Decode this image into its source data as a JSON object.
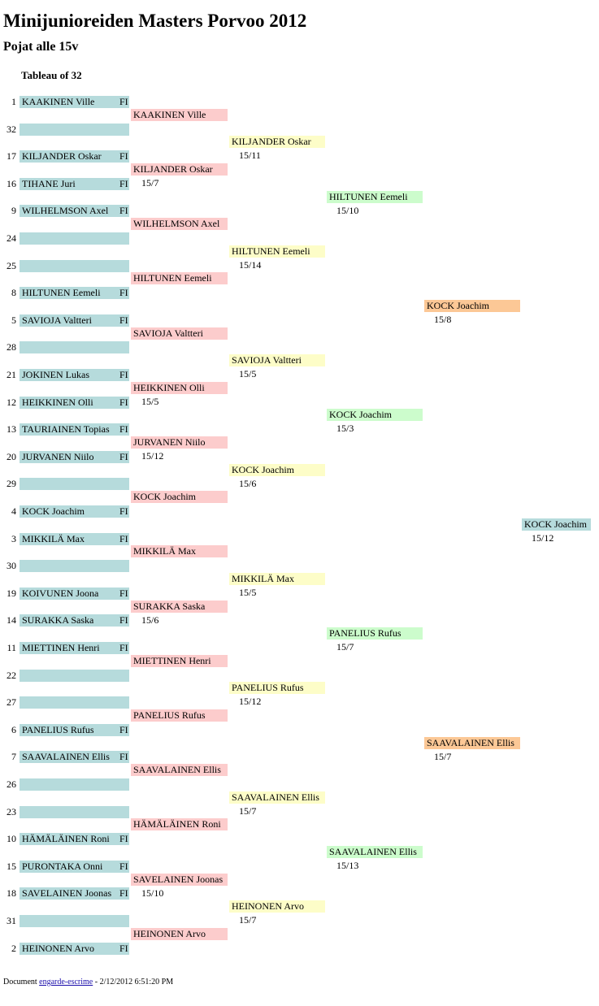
{
  "title": "Minijunioreiden Masters Porvoo 2012",
  "subtitle": "Pojat alle 15v",
  "tableau_label": "Tableau of 32",
  "colors": {
    "entry_bg": "#b6dbdc",
    "round32_bg": "#fccccc",
    "round16_bg": "#fdfdc8",
    "round8_bg": "#ccfccc",
    "round4_bg": "#fcc896",
    "final_bg": "#b6dbdc"
  },
  "entries": [
    {
      "seed": "1",
      "name": "KAAKINEN Ville",
      "nat": "FI"
    },
    {
      "seed": "32",
      "name": "",
      "nat": ""
    },
    {
      "seed": "17",
      "name": "KILJANDER Oskar",
      "nat": "FI"
    },
    {
      "seed": "16",
      "name": "TIHANE Juri",
      "nat": "FI"
    },
    {
      "seed": "9",
      "name": "WILHELMSON Axel",
      "nat": "FI"
    },
    {
      "seed": "24",
      "name": "",
      "nat": ""
    },
    {
      "seed": "25",
      "name": "",
      "nat": ""
    },
    {
      "seed": "8",
      "name": "HILTUNEN Eemeli",
      "nat": "FI"
    },
    {
      "seed": "5",
      "name": "SAVIOJA Valtteri",
      "nat": "FI"
    },
    {
      "seed": "28",
      "name": "",
      "nat": ""
    },
    {
      "seed": "21",
      "name": "JOKINEN Lukas",
      "nat": "FI"
    },
    {
      "seed": "12",
      "name": "HEIKKINEN Olli",
      "nat": "FI"
    },
    {
      "seed": "13",
      "name": "TAURIAINEN Topias",
      "nat": "FI"
    },
    {
      "seed": "20",
      "name": "JURVANEN Niilo",
      "nat": "FI"
    },
    {
      "seed": "29",
      "name": "",
      "nat": ""
    },
    {
      "seed": "4",
      "name": "KOCK Joachim",
      "nat": "FI"
    },
    {
      "seed": "3",
      "name": "MIKKILÄ Max",
      "nat": "FI"
    },
    {
      "seed": "30",
      "name": "",
      "nat": ""
    },
    {
      "seed": "19",
      "name": "KOIVUNEN Joona",
      "nat": "FI"
    },
    {
      "seed": "14",
      "name": "SURAKKA Saska",
      "nat": "FI"
    },
    {
      "seed": "11",
      "name": "MIETTINEN Henri",
      "nat": "FI"
    },
    {
      "seed": "22",
      "name": "",
      "nat": ""
    },
    {
      "seed": "27",
      "name": "",
      "nat": ""
    },
    {
      "seed": "6",
      "name": "PANELIUS Rufus",
      "nat": "FI"
    },
    {
      "seed": "7",
      "name": "SAAVALAINEN Ellis",
      "nat": "FI"
    },
    {
      "seed": "26",
      "name": "",
      "nat": ""
    },
    {
      "seed": "23",
      "name": "",
      "nat": ""
    },
    {
      "seed": "10",
      "name": "HÄMÄLÄINEN Roni",
      "nat": "FI"
    },
    {
      "seed": "15",
      "name": "PURONTAKA Onni",
      "nat": "FI"
    },
    {
      "seed": "18",
      "name": "SAVELAINEN Joonas",
      "nat": "FI"
    },
    {
      "seed": "31",
      "name": "",
      "nat": ""
    },
    {
      "seed": "2",
      "name": "HEINONEN Arvo",
      "nat": "FI"
    }
  ],
  "round1": [
    {
      "name": "KAAKINEN Ville",
      "score": ""
    },
    {
      "name": "KILJANDER Oskar",
      "score": "15/7"
    },
    {
      "name": "WILHELMSON Axel",
      "score": ""
    },
    {
      "name": "HILTUNEN Eemeli",
      "score": ""
    },
    {
      "name": "SAVIOJA Valtteri",
      "score": ""
    },
    {
      "name": "HEIKKINEN Olli",
      "score": "15/5"
    },
    {
      "name": "JURVANEN Niilo",
      "score": "15/12"
    },
    {
      "name": "KOCK Joachim",
      "score": ""
    },
    {
      "name": "MIKKILÄ Max",
      "score": ""
    },
    {
      "name": "SURAKKA Saska",
      "score": "15/6"
    },
    {
      "name": "MIETTINEN Henri",
      "score": ""
    },
    {
      "name": "PANELIUS Rufus",
      "score": ""
    },
    {
      "name": "SAAVALAINEN Ellis",
      "score": ""
    },
    {
      "name": "HÄMÄLÄINEN Roni",
      "score": ""
    },
    {
      "name": "SAVELAINEN Joonas",
      "score": "15/10"
    },
    {
      "name": "HEINONEN Arvo",
      "score": ""
    }
  ],
  "round2": [
    {
      "name": "KILJANDER Oskar",
      "score": "15/11"
    },
    {
      "name": "HILTUNEN Eemeli",
      "score": "15/14"
    },
    {
      "name": "SAVIOJA Valtteri",
      "score": "15/5"
    },
    {
      "name": "KOCK Joachim",
      "score": "15/6"
    },
    {
      "name": "MIKKILÄ Max",
      "score": "15/5"
    },
    {
      "name": "PANELIUS Rufus",
      "score": "15/12"
    },
    {
      "name": "SAAVALAINEN Ellis",
      "score": "15/7"
    },
    {
      "name": "HEINONEN Arvo",
      "score": "15/7"
    }
  ],
  "round3": [
    {
      "name": "HILTUNEN Eemeli",
      "score": "15/10"
    },
    {
      "name": "KOCK Joachim",
      "score": "15/3"
    },
    {
      "name": "PANELIUS Rufus",
      "score": "15/7"
    },
    {
      "name": "SAAVALAINEN Ellis",
      "score": "15/13"
    }
  ],
  "round4": [
    {
      "name": "KOCK Joachim",
      "score": "15/8"
    },
    {
      "name": "SAAVALAINEN Ellis",
      "score": "15/7"
    }
  ],
  "final": [
    {
      "name": "KOCK Joachim",
      "score": "15/12"
    }
  ],
  "footer": {
    "prefix": "Document",
    "link_text": "engarde-escrime",
    "suffix": "- 2/12/2012 6:51:20 PM"
  }
}
